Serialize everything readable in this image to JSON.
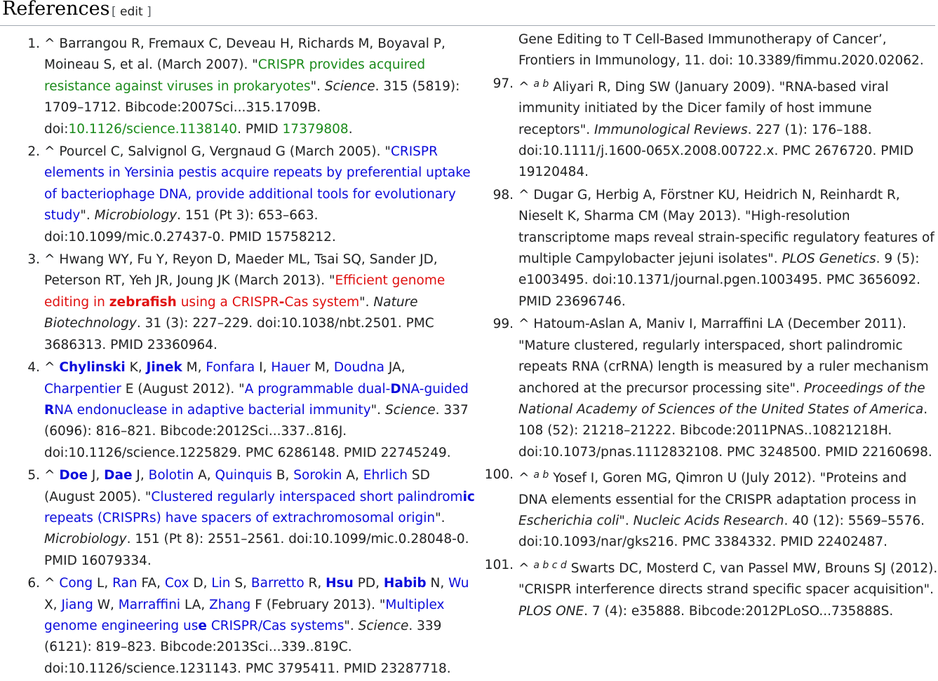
{
  "header": {
    "title": "References",
    "edit_open": "[ ",
    "edit_label": "edit",
    "edit_close": " ]"
  },
  "left": {
    "r1": {
      "num": "1.",
      "authors": "Barrangou R, Fremaux C, Deveau H, Richards M, Boyaval P, Moineau S, et al. (March 2007). \"",
      "title": "CRISPR provides acquired resistance against viruses in prokaryotes",
      "after_title": "\". ",
      "journal": "Science",
      "rest": ". 315 (5819): 1709–1712. Bibcode:2007Sci...315.1709B. doi:",
      "doi": "10.1126/science.1138140",
      "pmid_label": ". PMID ",
      "pmid": "17379808",
      "end": "."
    },
    "r2": {
      "num": "2.",
      "authors": "Pourcel C, Salvignol G, Vergnaud G (March 2005). \"",
      "title": "CRISPR elements in Yersinia pestis acquire repeats by preferential uptake of bacteriophage DNA, provide additional tools for evolutionary study",
      "after_title": "\". ",
      "journal": "Microbiology",
      "rest": ". 151 (Pt 3): 653–663. doi:10.1099/mic.0.27437-0. PMID 15758212."
    },
    "r3": {
      "num": "3.",
      "authors": "Hwang WY, Fu Y, Reyon D, Maeder ML, Tsai SQ, Sander JD, Peterson RT, Yeh JR, Joung JK (March 2013). \"",
      "title_a": "Efficient genome editing in ",
      "title_b": "zebrafish",
      "title_c": " using a CRISPR",
      "title_d": "-",
      "title_e": "Cas system",
      "after_title": "\". ",
      "journal": "Nature Biotechnology",
      "rest": ". 31 (3): 227–229. doi:10.1038/nbt.2501. PMC 3686313. PMID 23360964."
    },
    "r4": {
      "num": "4.",
      "a1": "Chylinski",
      "a1i": " K, ",
      "a2": "Jinek",
      "a2i": " M, ",
      "a3": "Fonfara",
      "a3i": " I, ",
      "a4": "Hauer",
      "a4i": " M, ",
      "a5": "Doudna",
      "a5i": " JA, ",
      "a6": "Charpentier",
      "a6i": " E (August 2012). \"",
      "t1": "A programmable dual-",
      "t2": "D",
      "t3": "NA-guided ",
      "t4": "R",
      "t5": "NA endonuclease in adaptive bacterial immunity",
      "after_title": "\". ",
      "journal": "Science",
      "rest": ". 337 (6096): 816–821. Bibcode:2012Sci...337..816J. doi:10.1126/science.1225829. PMC 6286148. PMID 22745249."
    },
    "r5": {
      "num": "5.",
      "a1": "Doe",
      "a1i": " J, ",
      "a2": "Dae",
      "a2i": " J, ",
      "a3": "Bolotin",
      "a3i": " A, ",
      "a4": "Quinquis",
      "a4i": " B, ",
      "a5": "Sorokin",
      "a5i": " A, ",
      "a6": "Ehrlich",
      "a6i": " SD (August 2005). \"",
      "t1": "Clustered regularly interspaced short palindrom",
      "t2": "ic",
      "t3": " repeats (CRISPRs) have spacers of extrachromosomal origin",
      "after_title": "\". ",
      "journal": "Microbiology",
      "rest": ". 151 (Pt 8): 2551–2561. doi:10.1099/mic.0.28048-0. PMID 16079334."
    },
    "r6": {
      "num": "6.",
      "a1": "Cong",
      "a1i": " L, ",
      "a2": "Ran",
      "a2i": " FA, ",
      "a3": "Cox",
      "a3i": " D, ",
      "a4": "Lin",
      "a4i": " S, ",
      "a5": "Barretto",
      "a5i": " R, ",
      "a6": "Hsu",
      "a6i": " PD, ",
      "a7": "Habib",
      "a7i": " N, ",
      "a8": "Wu",
      "a8i": " X, ",
      "a9": "Jiang",
      "a9i": " W, ",
      "a10": "Marraffini",
      "a10i": " LA, ",
      "a11": "Zhang",
      "a11i": " F (February 2013). \"",
      "t1": "Multiplex genome engineering us",
      "t2": "e",
      "t3": " CRISPR/Cas systems",
      "after_title": "\". ",
      "journal": "Science",
      "rest": ". 339 (6121): 819–823. Bibcode:2013Sci...339..819C. doi:10.1126/science.1231143. PMC 3795411. PMID 23287718."
    }
  },
  "right": {
    "cont": "Gene Editing to T Cell-Based Immunotherapy of Cancer’, Frontiers in Immunology, 11. doi: 10.3389/fimmu.2020.02062.",
    "r97": {
      "num": "97.",
      "sups": "a b",
      "text": "Aliyari R, Ding SW (January 2009). \"RNA-based viral immunity initiated by the Dicer family of host immune receptors\". ",
      "journal": "Immunological Reviews",
      "rest": ". 227 (1): 176–188. doi:10.1111/j.1600-065X.2008.00722.x. PMC 2676720. PMID 19120484."
    },
    "r98": {
      "num": "98.",
      "text": "Dugar G, Herbig A, Förstner KU, Heidrich N, Reinhardt R, Nieselt K, Sharma CM (May 2013). \"High-resolution transcriptome maps reveal strain-specific regulatory features of multiple Campylobacter jejuni isolates\". ",
      "journal": "PLOS Genetics",
      "rest": ". 9 (5): e1003495. doi:10.1371/journal.pgen.1003495. PMC 3656092. PMID 23696746."
    },
    "r99": {
      "num": "99.",
      "text": "Hatoum-Aslan A, Maniv I, Marraffini LA (December 2011). \"Mature clustered, regularly interspaced, short palindromic repeats RNA (crRNA) length is measured by a ruler mechanism anchored at the precursor processing site\". ",
      "journal": "Proceedings of the National Academy of Sciences of the United States of America",
      "rest": ". 108 (52): 21218–21222. Bibcode:2011PNAS..10821218H. doi:10.1073/pnas.1112832108. PMC 3248500. PMID 22160698."
    },
    "r100": {
      "num": "100.",
      "sups": "a b",
      "text": "Yosef I, Goren MG, Qimron U (July 2012). \"Proteins and DNA elements essential for the CRISPR adaptation process in ",
      "species": "Escherichia coli",
      "text2": "\". ",
      "journal": "Nucleic Acids Research",
      "rest": ". 40 (12): 5569–5576. doi:10.1093/nar/gks216. PMC 3384332. PMID 22402487."
    },
    "r101": {
      "num": "101.",
      "sups": "a b c d",
      "text": "Swarts DC, Mosterd C, van Passel MW, Brouns SJ (2012). \"CRISPR interference directs strand specific spacer acquisition\". ",
      "journal": "PLOS ONE",
      "rest": ". 7 (4): e35888. Bibcode:2012PLoSO...735888S."
    }
  }
}
